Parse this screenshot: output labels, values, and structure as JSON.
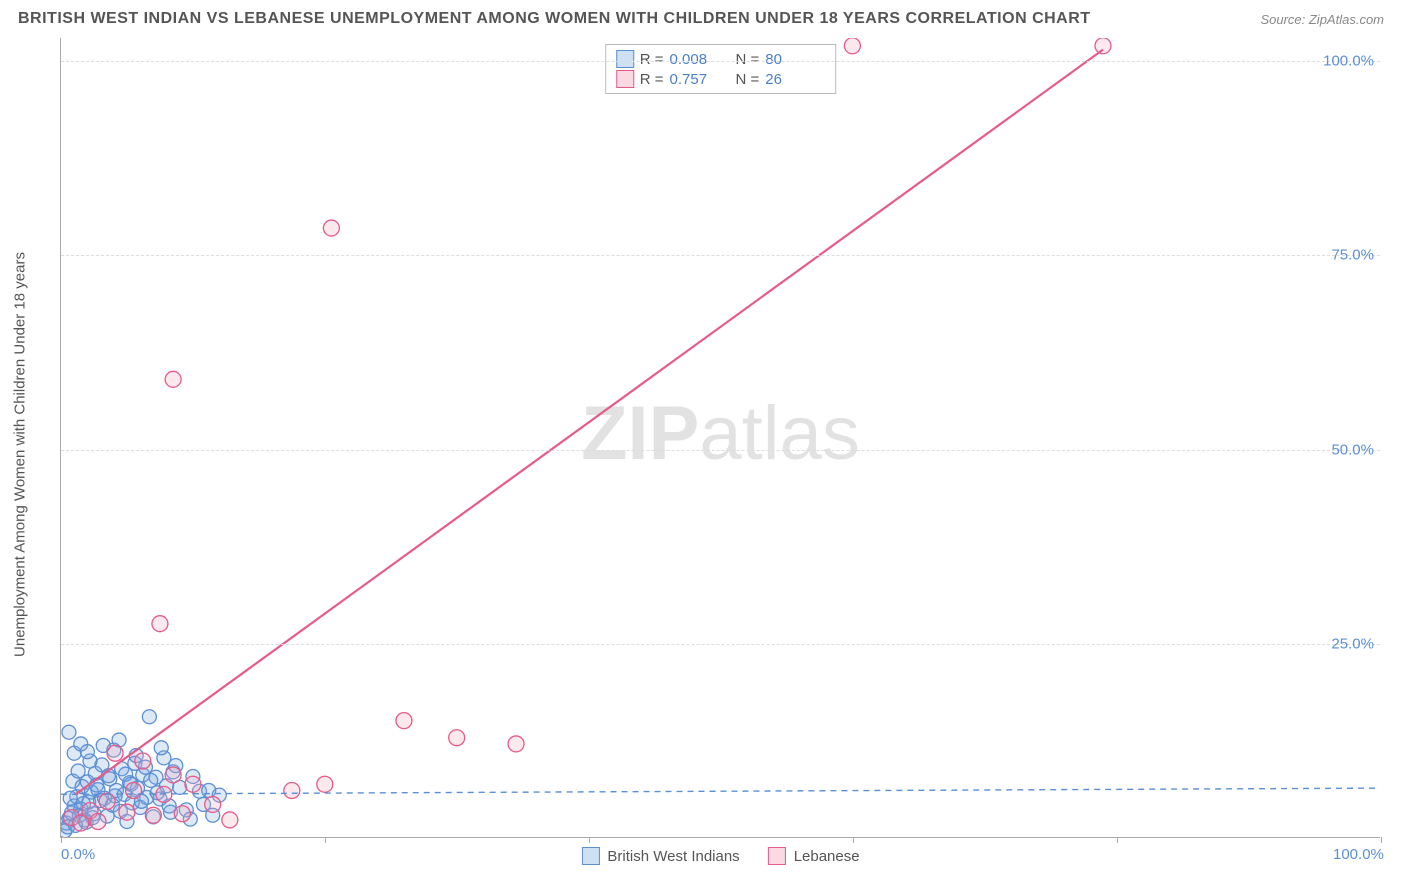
{
  "title": "BRITISH WEST INDIAN VS LEBANESE UNEMPLOYMENT AMONG WOMEN WITH CHILDREN UNDER 18 YEARS CORRELATION CHART",
  "source": "Source: ZipAtlas.com",
  "watermark_a": "ZIP",
  "watermark_b": "atlas",
  "y_axis_label": "Unemployment Among Women with Children Under 18 years",
  "axis": {
    "xmin": 0,
    "xmax": 100,
    "ymin": 0,
    "ymax": 103,
    "tick_color": "#5b8fd6",
    "grid_color": "#dddddd",
    "y_ticks": [
      25,
      50,
      75,
      100
    ],
    "y_tick_labels": [
      "25.0%",
      "50.0%",
      "75.0%",
      "100.0%"
    ],
    "x_ticks": [
      0,
      20,
      40,
      60,
      80,
      100
    ],
    "x_tick_visible": [
      0,
      100
    ],
    "x_tick_labels": {
      "0": "0.0%",
      "100": "100.0%"
    }
  },
  "legend_top": [
    {
      "swatch": "blue",
      "r_label": "R =",
      "r_value": "0.008",
      "n_label": "N =",
      "n_value": "80"
    },
    {
      "swatch": "pink",
      "r_label": "R =",
      "r_value": "0.757",
      "n_label": "N =",
      "n_value": "26"
    }
  ],
  "legend_bottom": [
    {
      "swatch": "blue",
      "label": "British West Indians"
    },
    {
      "swatch": "pink",
      "label": "Lebanese"
    }
  ],
  "series": {
    "blue": {
      "color": "#5b8fd6",
      "fill": "#7aa8dd",
      "marker_r": 7,
      "trend": {
        "x1": 0,
        "y1": 5.5,
        "x2": 100,
        "y2": 6.3,
        "dash": "6 5"
      },
      "points": [
        [
          0.4,
          1.8
        ],
        [
          0.6,
          2.4
        ],
        [
          0.8,
          3.1
        ],
        [
          1.0,
          4.0
        ],
        [
          1.2,
          5.2
        ],
        [
          1.5,
          3.6
        ],
        [
          1.6,
          6.5
        ],
        [
          1.8,
          2.2
        ],
        [
          2.0,
          7.1
        ],
        [
          2.1,
          4.5
        ],
        [
          2.3,
          5.8
        ],
        [
          2.5,
          3.0
        ],
        [
          2.6,
          8.2
        ],
        [
          2.8,
          6.1
        ],
        [
          3.0,
          4.7
        ],
        [
          3.1,
          9.3
        ],
        [
          3.3,
          5.0
        ],
        [
          3.5,
          2.7
        ],
        [
          3.7,
          7.5
        ],
        [
          3.9,
          4.1
        ],
        [
          4.0,
          11.2
        ],
        [
          4.2,
          6.0
        ],
        [
          4.5,
          3.3
        ],
        [
          4.6,
          8.8
        ],
        [
          4.8,
          5.5
        ],
        [
          5.0,
          2.0
        ],
        [
          5.2,
          7.0
        ],
        [
          5.4,
          4.4
        ],
        [
          5.6,
          9.5
        ],
        [
          5.8,
          6.3
        ],
        [
          6.0,
          3.8
        ],
        [
          6.2,
          8.0
        ],
        [
          6.5,
          5.1
        ],
        [
          6.7,
          15.5
        ],
        [
          7.0,
          2.6
        ],
        [
          7.2,
          7.7
        ],
        [
          7.5,
          4.9
        ],
        [
          7.8,
          10.2
        ],
        [
          8.0,
          6.6
        ],
        [
          8.3,
          3.2
        ],
        [
          8.5,
          8.4
        ],
        [
          0.3,
          0.8
        ],
        [
          0.5,
          1.3
        ],
        [
          1.1,
          1.5
        ],
        [
          1.4,
          2.8
        ],
        [
          1.9,
          1.9
        ],
        [
          2.4,
          2.5
        ],
        [
          0.7,
          5.0
        ],
        [
          0.9,
          7.2
        ],
        [
          1.3,
          8.5
        ],
        [
          1.7,
          4.3
        ],
        [
          2.2,
          9.8
        ],
        [
          2.7,
          6.7
        ],
        [
          3.2,
          11.8
        ],
        [
          3.6,
          7.9
        ],
        [
          4.1,
          5.3
        ],
        [
          4.4,
          12.5
        ],
        [
          4.9,
          8.1
        ],
        [
          5.3,
          6.8
        ],
        [
          5.7,
          10.5
        ],
        [
          6.1,
          4.6
        ],
        [
          6.4,
          9.0
        ],
        [
          6.8,
          7.3
        ],
        [
          7.3,
          5.7
        ],
        [
          7.6,
          11.5
        ],
        [
          8.2,
          4.0
        ],
        [
          8.7,
          9.2
        ],
        [
          9.0,
          6.4
        ],
        [
          9.5,
          3.5
        ],
        [
          10.0,
          7.8
        ],
        [
          10.5,
          5.9
        ],
        [
          0.6,
          13.5
        ],
        [
          1.0,
          10.8
        ],
        [
          1.5,
          12.0
        ],
        [
          2.0,
          11.0
        ],
        [
          9.8,
          2.3
        ],
        [
          10.8,
          4.2
        ],
        [
          11.2,
          6.0
        ],
        [
          11.5,
          2.8
        ],
        [
          12.0,
          5.4
        ]
      ]
    },
    "pink": {
      "color": "#e75a8a",
      "fill": "#f4a6bd",
      "marker_r": 8,
      "trend": {
        "x1": 1.1,
        "y1": 5.5,
        "x2": 79,
        "y2": 101.5,
        "dash": null
      },
      "points": [
        [
          0.8,
          2.5
        ],
        [
          1.5,
          1.8
        ],
        [
          2.2,
          3.4
        ],
        [
          2.8,
          2.0
        ],
        [
          3.5,
          4.6
        ],
        [
          4.1,
          10.8
        ],
        [
          5.0,
          3.2
        ],
        [
          5.5,
          6.0
        ],
        [
          6.2,
          9.8
        ],
        [
          7.0,
          2.8
        ],
        [
          7.8,
          5.5
        ],
        [
          8.5,
          8.0
        ],
        [
          9.2,
          3.0
        ],
        [
          10.0,
          6.8
        ],
        [
          11.5,
          4.2
        ],
        [
          12.8,
          2.2
        ],
        [
          17.5,
          6.0
        ],
        [
          20.0,
          6.8
        ],
        [
          26.0,
          15.0
        ],
        [
          30.0,
          12.8
        ],
        [
          34.5,
          12.0
        ],
        [
          7.5,
          27.5
        ],
        [
          8.5,
          59.0
        ],
        [
          20.5,
          78.5
        ],
        [
          60.0,
          102.0
        ],
        [
          79.0,
          102.0
        ]
      ]
    }
  },
  "background_color": "#ffffff"
}
